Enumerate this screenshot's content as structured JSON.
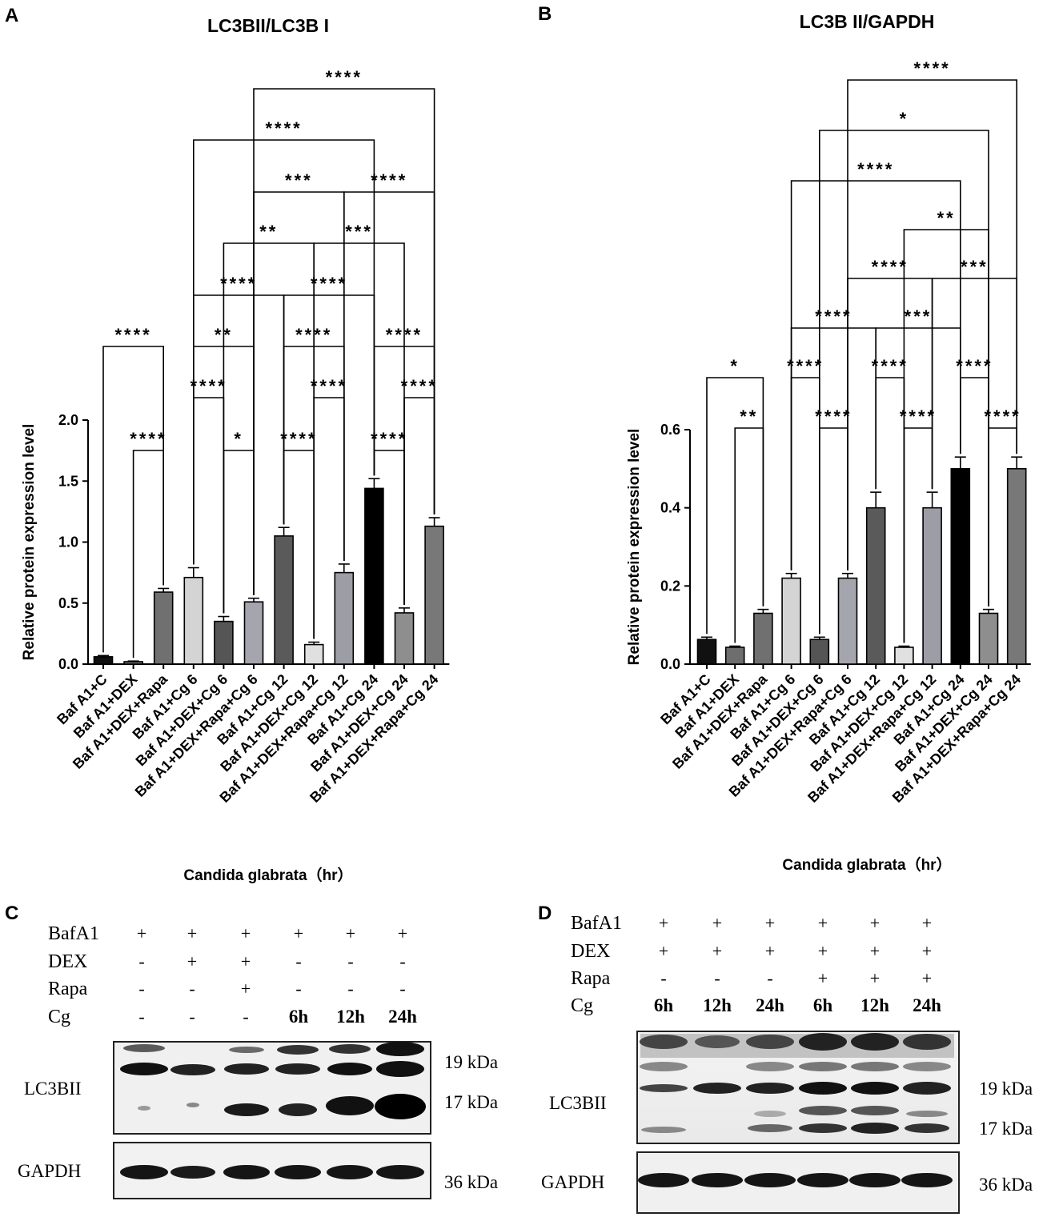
{
  "panels": {
    "A": "A",
    "B": "B",
    "C": "C",
    "D": "D"
  },
  "chart_data": [
    {
      "type": "bar",
      "title": "LC3BII/LC3B I",
      "xlabel": "Candida glabrata（hr）",
      "ylabel": "Relative protein expression level",
      "ylim": [
        0,
        2.0
      ],
      "yticks": [
        "0.0",
        "0.5",
        "1.0",
        "1.5",
        "2.0"
      ],
      "yticks_values": [
        0,
        0.5,
        1.0,
        1.5,
        2.0
      ],
      "categories": [
        "Baf A1+C",
        "Baf A1+DEX",
        "Baf A1+DEX+Rapa",
        "Baf A1+Cg 6",
        "Baf A1+DEX+Cg 6",
        "Baf A1+DEX+Rapa+Cg 6",
        "Baf A1+Cg 12",
        "Baf A1+DEX+Cg 12",
        "Baf A1+DEX+Rapa+Cg 12",
        "Baf A1+Cg 24",
        "Baf A1+DEX+Cg 24",
        "Baf A1+DEX+Rapa+Cg 24"
      ],
      "values": [
        0.06,
        0.02,
        0.59,
        0.71,
        0.35,
        0.51,
        1.05,
        0.16,
        0.75,
        1.44,
        0.42,
        1.13
      ],
      "errors": [
        0.01,
        0.005,
        0.03,
        0.08,
        0.04,
        0.03,
        0.07,
        0.02,
        0.07,
        0.08,
        0.04,
        0.07
      ],
      "bar_colors": [
        "#111111",
        "#6e6e6e",
        "#707070",
        "#d4d4d4",
        "#555555",
        "#a5a5ae",
        "#5a5a5a",
        "#e0e0e0",
        "#9d9da6",
        "#000000",
        "#8e8e8e",
        "#787878"
      ],
      "comparisons": [
        {
          "i": 1,
          "j": 2,
          "label": "****"
        },
        {
          "i": 4,
          "j": 5,
          "label": "*"
        },
        {
          "i": 6,
          "j": 7,
          "label": "****"
        },
        {
          "i": 9,
          "j": 10,
          "label": "****"
        },
        {
          "i": 3,
          "j": 4,
          "label": "****"
        },
        {
          "i": 7,
          "j": 8,
          "label": "****"
        },
        {
          "i": 10,
          "j": 11,
          "label": "****"
        },
        {
          "i": 0,
          "j": 2,
          "label": "****"
        },
        {
          "i": 3,
          "j": 5,
          "label": "**"
        },
        {
          "i": 6,
          "j": 8,
          "label": "****"
        },
        {
          "i": 9,
          "j": 11,
          "label": "****"
        },
        {
          "i": 3,
          "j": 6,
          "label": "****"
        },
        {
          "i": 6,
          "j": 9,
          "label": "****"
        },
        {
          "i": 4,
          "j": 7,
          "label": "**"
        },
        {
          "i": 7,
          "j": 10,
          "label": "***"
        },
        {
          "i": 5,
          "j": 8,
          "label": "***"
        },
        {
          "i": 8,
          "j": 11,
          "label": "****"
        },
        {
          "i": 3,
          "j": 9,
          "label": "****"
        },
        {
          "i": 5,
          "j": 11,
          "label": "****"
        }
      ]
    },
    {
      "type": "bar",
      "title": "LC3B II/GAPDH",
      "xlabel": "Candida glabrata（hr）",
      "ylabel": "Relative protein expression level",
      "ylim": [
        0,
        0.6
      ],
      "yticks": [
        "0.0",
        "0.2",
        "0.4",
        "0.6"
      ],
      "yticks_values": [
        0,
        0.2,
        0.4,
        0.6
      ],
      "categories": [
        "Baf A1+C",
        "Baf A1+DEX",
        "Baf A1+DEX+Rapa",
        "Baf A1+Cg 6",
        "Baf A1+DEX+Cg 6",
        "Baf A1+DEX+Rapa+Cg 6",
        "Baf A1+Cg 12",
        "Baf A1+DEX+Cg 12",
        "Baf A1+DEX+Rapa+Cg 12",
        "Baf A1+Cg 24",
        "Baf A1+DEX+Cg 24",
        "Baf A1+DEX+Rapa+Cg 24"
      ],
      "values": [
        0.063,
        0.043,
        0.13,
        0.22,
        0.063,
        0.22,
        0.4,
        0.043,
        0.4,
        0.5,
        0.13,
        0.5
      ],
      "errors": [
        0.006,
        0.003,
        0.01,
        0.012,
        0.006,
        0.012,
        0.04,
        0.003,
        0.04,
        0.03,
        0.01,
        0.03
      ],
      "bar_colors": [
        "#111111",
        "#6e6e6e",
        "#707070",
        "#d4d4d4",
        "#555555",
        "#a5a5ae",
        "#5a5a5a",
        "#e0e0e0",
        "#9d9da6",
        "#000000",
        "#8e8e8e",
        "#787878"
      ],
      "comparisons": [
        {
          "i": 1,
          "j": 2,
          "label": "**"
        },
        {
          "i": 4,
          "j": 5,
          "label": "****"
        },
        {
          "i": 7,
          "j": 8,
          "label": "****"
        },
        {
          "i": 10,
          "j": 11,
          "label": "****"
        },
        {
          "i": 0,
          "j": 2,
          "label": "*"
        },
        {
          "i": 3,
          "j": 4,
          "label": "****"
        },
        {
          "i": 6,
          "j": 7,
          "label": "****"
        },
        {
          "i": 9,
          "j": 10,
          "label": "****"
        },
        {
          "i": 3,
          "j": 6,
          "label": "****"
        },
        {
          "i": 6,
          "j": 9,
          "label": "***"
        },
        {
          "i": 5,
          "j": 8,
          "label": "****"
        },
        {
          "i": 8,
          "j": 11,
          "label": "***"
        },
        {
          "i": 7,
          "j": 10,
          "label": "**"
        },
        {
          "i": 3,
          "j": 9,
          "label": "****"
        },
        {
          "i": 4,
          "j": 10,
          "label": "*"
        },
        {
          "i": 5,
          "j": 11,
          "label": "****"
        }
      ]
    }
  ],
  "blot_c": {
    "rows": [
      {
        "label": "BafA1",
        "values": [
          "+",
          "+",
          "+",
          "+",
          "+",
          "+"
        ]
      },
      {
        "label": "DEX",
        "values": [
          "-",
          "+",
          "+",
          "-",
          "-",
          "-"
        ]
      },
      {
        "label": "Rapa",
        "values": [
          "-",
          "-",
          "+",
          "-",
          "-",
          "-"
        ]
      },
      {
        "label": "Cg",
        "values": [
          "-",
          "-",
          "-",
          "6h",
          "12h",
          "24h"
        ]
      }
    ],
    "lc3_label": "LC3BII",
    "gapdh_label": "GAPDH",
    "kda_19": "19 kDa",
    "kda_17": "17 kDa",
    "kda_36": "36 kDa"
  },
  "blot_d": {
    "rows": [
      {
        "label": "BafA1",
        "values": [
          "+",
          "+",
          "+",
          "+",
          "+",
          "+"
        ]
      },
      {
        "label": "DEX",
        "values": [
          "+",
          "+",
          "+",
          "+",
          "+",
          "+"
        ]
      },
      {
        "label": "Rapa",
        "values": [
          "-",
          "-",
          "-",
          "+",
          "+",
          "+"
        ]
      },
      {
        "label": "Cg",
        "values": [
          "6h",
          "12h",
          "24h",
          "6h",
          "12h",
          "24h"
        ]
      }
    ],
    "lc3_label": "LC3BII",
    "gapdh_label": "GAPDH",
    "kda_19": "19 kDa",
    "kda_17": "17 kDa",
    "kda_36": "36 kDa"
  }
}
